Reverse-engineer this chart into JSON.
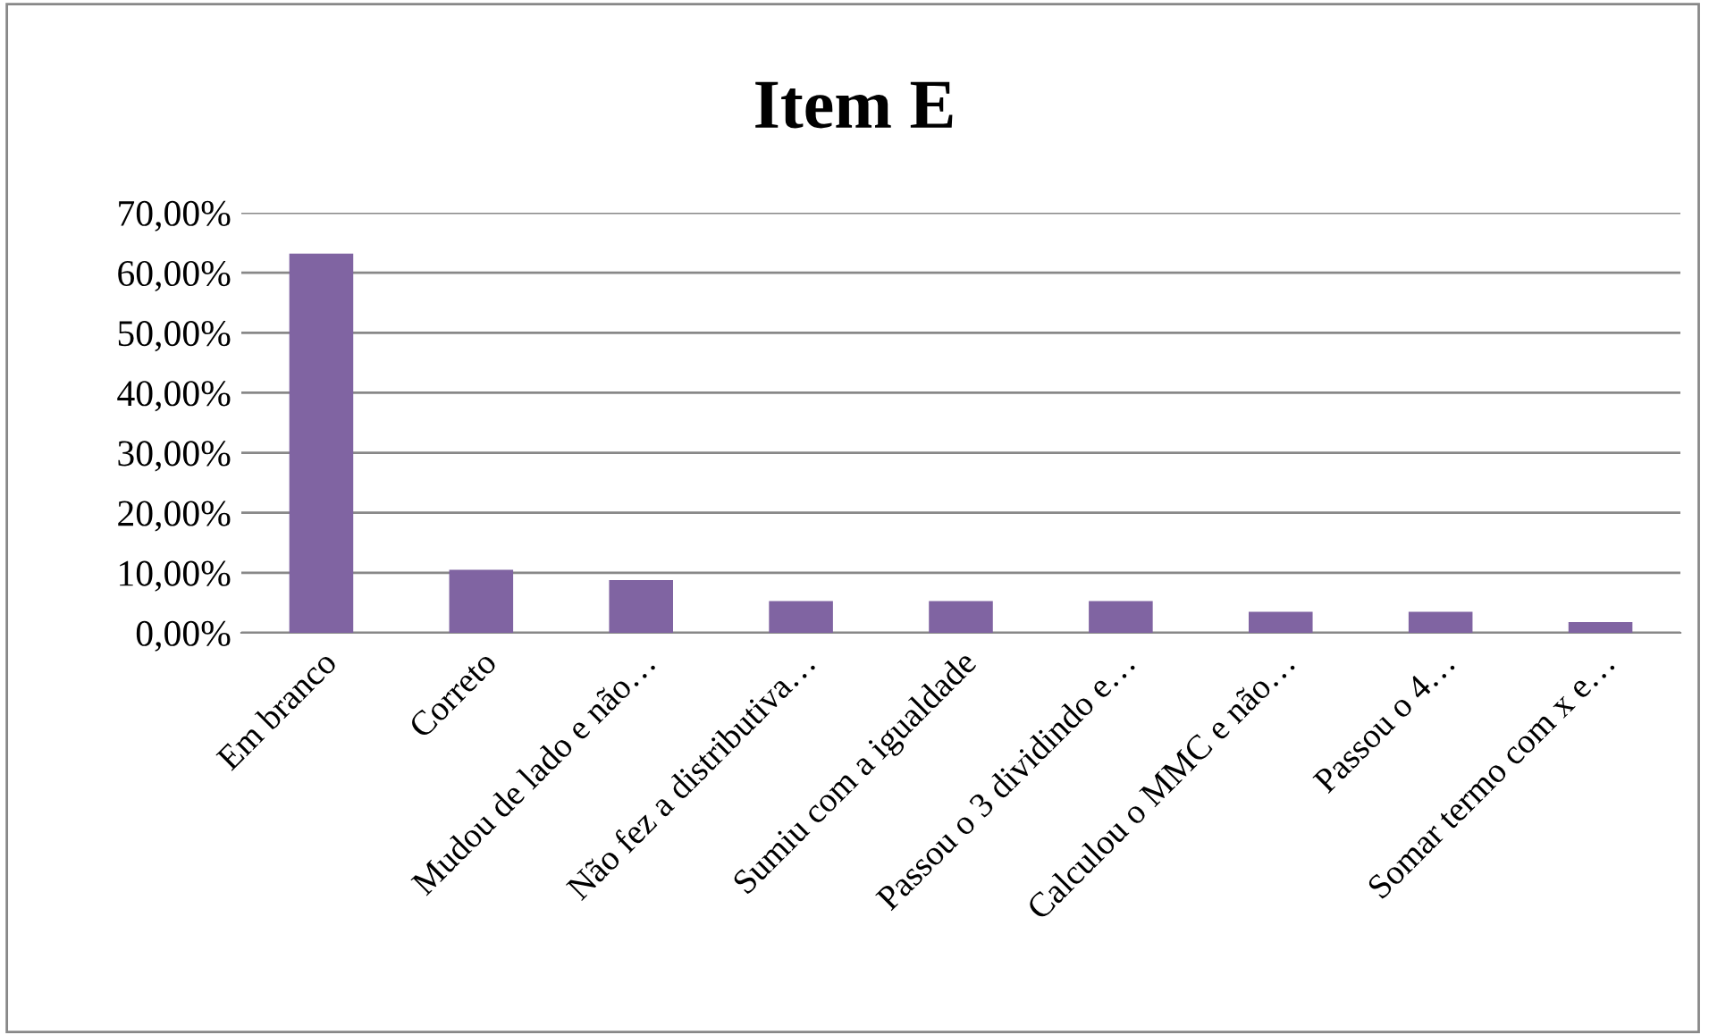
{
  "chart_data": {
    "type": "bar",
    "title": "Item E",
    "categories": [
      "Em branco",
      "Correto",
      "Mudou de lado e não…",
      "Não fez a distributiva…",
      "Sumiu com a igualdade",
      "Passou o 3 dividindo e…",
      "Calculou o MMC e não…",
      "Passou o 4…",
      "Somar termo com x e…"
    ],
    "values": [
      63.2,
      10.5,
      8.8,
      5.3,
      5.3,
      5.3,
      3.5,
      3.5,
      1.8
    ],
    "color": "#8064a2",
    "ylim": [
      0,
      70
    ],
    "yticks": [
      {
        "value": 0,
        "label": "0,00%"
      },
      {
        "value": 10,
        "label": "10,00%"
      },
      {
        "value": 20,
        "label": "20,00%"
      },
      {
        "value": 30,
        "label": "30,00%"
      },
      {
        "value": 40,
        "label": "40,00%"
      },
      {
        "value": 50,
        "label": "50,00%"
      },
      {
        "value": 60,
        "label": "60,00%"
      },
      {
        "value": 70,
        "label": "70,00%"
      }
    ],
    "grid": "y"
  }
}
